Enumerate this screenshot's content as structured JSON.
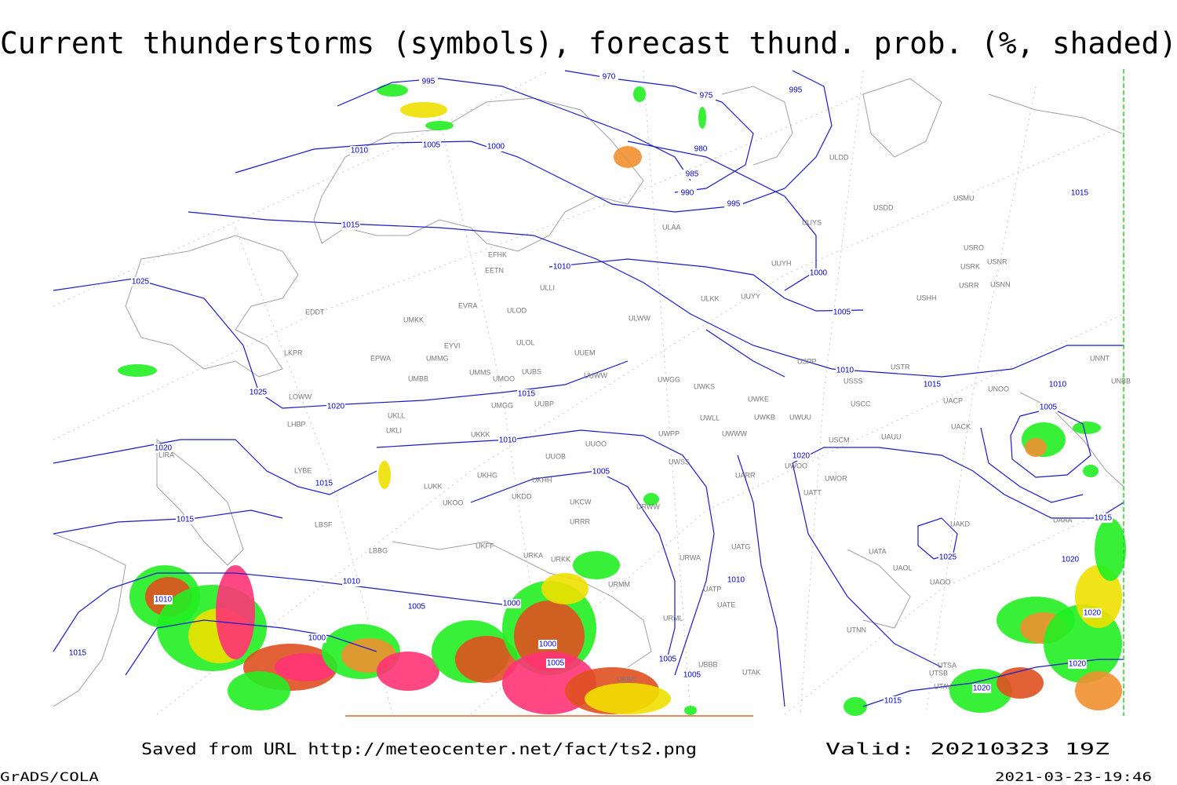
{
  "title": "Current thunderstorms (symbols), forecast thund. prob. (%, shaded)",
  "footer": {
    "source": "Saved from URL http://meteocenter.net/fact/ts2.png",
    "valid": "Valid: 20210323 19Z",
    "software": "GrADS/COLA",
    "timestamp": "2021-03-23-19:46"
  },
  "map": {
    "isobar_labels": [
      "995",
      "970",
      "975",
      "995",
      "1010",
      "1005",
      "1000",
      "980",
      "985",
      "990",
      "995",
      "1015",
      "1015",
      "1025",
      "1010",
      "1000",
      "1005",
      "1010",
      "1015",
      "1010",
      "1005",
      "1025",
      "1020",
      "1015",
      "1010",
      "1020",
      "1005",
      "1020",
      "1015",
      "1015",
      "1015",
      "1025",
      "1020",
      "1010",
      "1010",
      "1010",
      "1005",
      "1000",
      "1020",
      "1000",
      "1000",
      "1005",
      "1005",
      "1005",
      "1015",
      "1020",
      "1020",
      "1015"
    ],
    "stations": [
      "EFHK",
      "EETN",
      "EVRA",
      "ULOD",
      "EDDT",
      "UMKK",
      "EYVI",
      "ULOL",
      "UUEM",
      "EPWA",
      "UMMG",
      "LKPR",
      "UMMS",
      "UMOO",
      "UUBS",
      "UUWW",
      "UMBB",
      "LOWW",
      "UMGG",
      "UUBP",
      "UKLL",
      "UKLI",
      "LHBP",
      "UKKK",
      "UUOO",
      "UUOB",
      "LIRA",
      "LYBE",
      "UKHH",
      "UKDD",
      "UKHG",
      "LUKK",
      "UKOO",
      "UKCW",
      "URRR",
      "LBSF",
      "UKFF",
      "LBBG",
      "URKA",
      "URKK",
      "ULAA",
      "ULLI",
      "ULKK",
      "UUYY",
      "ULWW",
      "UUYH",
      "UUYS",
      "ULDD",
      "USDD",
      "USMU",
      "USRO",
      "USRK",
      "USNR",
      "USRR",
      "USNN",
      "USHH",
      "USPP",
      "USTR",
      "USSS",
      "UNOO",
      "UNBB",
      "UNNT",
      "USCC",
      "UACP",
      "UACK",
      "USCM",
      "UAUU",
      "UWGG",
      "UWKS",
      "UWKE",
      "UWKB",
      "UWUU",
      "UWLL",
      "UWWW",
      "UWPP",
      "UWSS",
      "UARR",
      "UWOO",
      "UWOR",
      "UATT",
      "URWW",
      "URWA",
      "UATG",
      "UAKD",
      "UAAA",
      "UATA",
      "UAOL",
      "UAOO",
      "UATE",
      "UATP",
      "URML",
      "UTNN",
      "UTAK",
      "UTSA",
      "UTSB",
      "UTAV",
      "URMM",
      "UBBB",
      "UBBN"
    ]
  }
}
